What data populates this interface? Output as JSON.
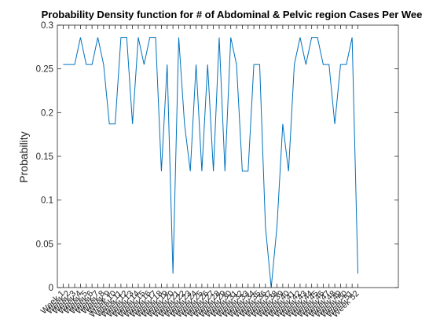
{
  "chart_data": {
    "type": "line",
    "title": "Probability Density function for # of Abdominal & Pelvic region Cases Per Wee",
    "xlabel": "",
    "ylabel": "Probability",
    "x": [
      "Week 1",
      "Week 2",
      "Week 3",
      "Week 4",
      "Week 5",
      "Week 6",
      "Week 7",
      "Week 8",
      "Week 9",
      "Week 10",
      "Week 11",
      "Week 12",
      "Week 13",
      "Week 14",
      "Week 15",
      "Week 16",
      "Week 17",
      "Week 18",
      "Week 19",
      "Week 20",
      "Week 21",
      "Week 22",
      "Week 23",
      "Week 24",
      "Week 25",
      "Week 26",
      "Week 27",
      "Week 28",
      "Week 29",
      "Week 30",
      "Week 31",
      "Week 32",
      "Week 33",
      "Week 34",
      "Week 35",
      "Week 36",
      "Week 37",
      "Week 38",
      "Week 39",
      "Week 40",
      "Week 41",
      "Week 42",
      "Week 43",
      "Week 44",
      "Week 45",
      "Week 46",
      "Week 47",
      "Week 48",
      "Week 49",
      "Week 50",
      "Week 51",
      "Week 52"
    ],
    "values": [
      0.255,
      0.255,
      0.255,
      0.286,
      0.255,
      0.255,
      0.286,
      0.255,
      0.187,
      0.187,
      0.286,
      0.286,
      0.187,
      0.286,
      0.255,
      0.286,
      0.286,
      0.133,
      0.255,
      0.016,
      0.286,
      0.187,
      0.133,
      0.255,
      0.133,
      0.255,
      0.133,
      0.286,
      0.133,
      0.286,
      0.255,
      0.133,
      0.133,
      0.255,
      0.255,
      0.07,
      0.0,
      0.07,
      0.187,
      0.133,
      0.255,
      0.286,
      0.255,
      0.286,
      0.286,
      0.255,
      0.255,
      0.187,
      0.255,
      0.255,
      0.286,
      0.016
    ],
    "ylim": [
      0,
      0.3
    ],
    "yticks": [
      0,
      0.05,
      0.1,
      0.15,
      0.2,
      0.25,
      0.3
    ],
    "yticklabels": [
      "0",
      "0.05",
      "0.1",
      "0.15",
      "0.2",
      "0.25",
      "0.3"
    ],
    "xlim": [
      0,
      59
    ],
    "grid": false,
    "legend": "none",
    "line_color": "#0072bd"
  }
}
